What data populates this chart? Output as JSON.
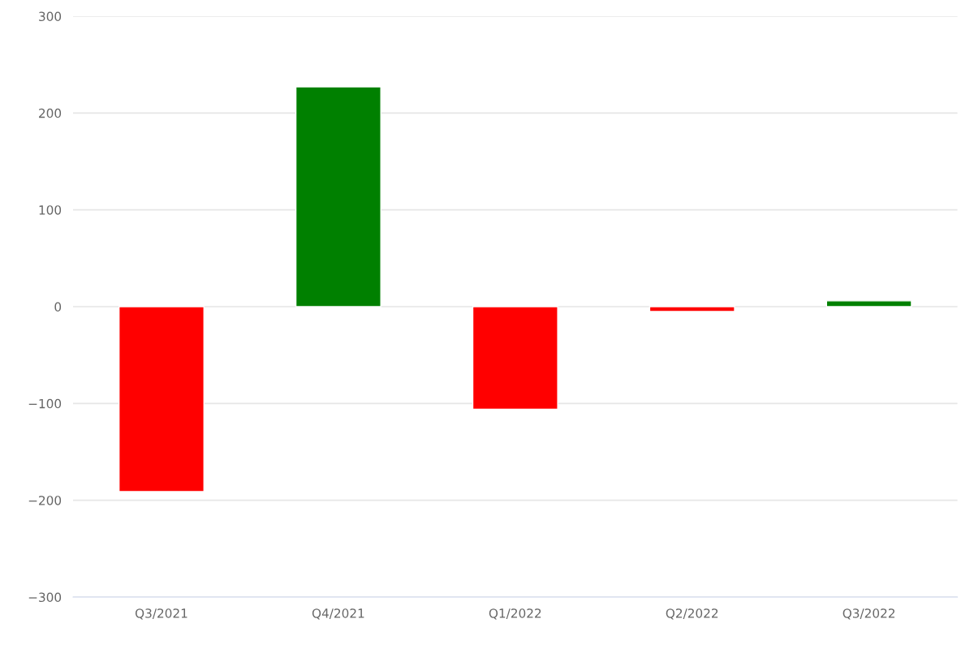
{
  "chart_data": {
    "type": "bar",
    "categories": [
      "Q3/2021",
      "Q4/2021",
      "Q1/2022",
      "Q2/2022",
      "Q3/2022"
    ],
    "values": [
      -191,
      227,
      -106,
      -5,
      6
    ],
    "colors": [
      "#ff0000",
      "#008000",
      "#ff0000",
      "#ff0000",
      "#008000"
    ],
    "ylim": [
      -300,
      300
    ],
    "yticks": [
      {
        "value": -300,
        "label": "−300"
      },
      {
        "value": -200,
        "label": "−200"
      },
      {
        "value": -100,
        "label": "−100"
      },
      0,
      100,
      200,
      300
    ],
    "grid": "y"
  }
}
